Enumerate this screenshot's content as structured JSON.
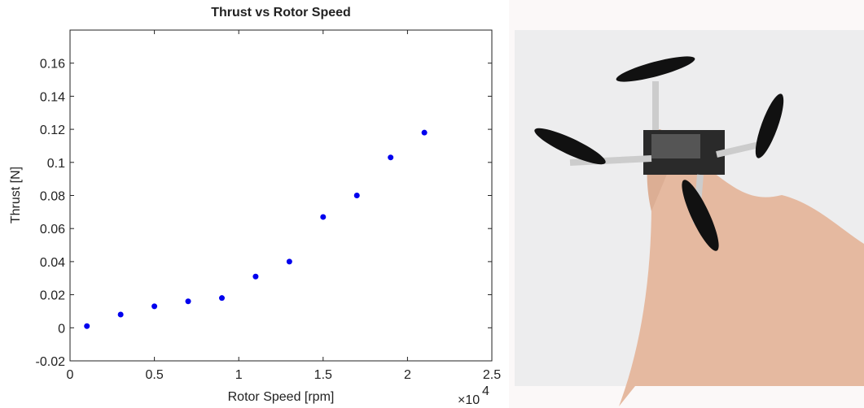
{
  "chart_data": {
    "type": "scatter",
    "title": "Thrust vs Rotor Speed",
    "x_label": "Rotor Speed [rpm]",
    "y_label": "Thrust [N]",
    "x_multiplier": "×10",
    "x_multiplier_exponent": "4",
    "x": [
      0.1,
      0.3,
      0.5,
      0.7,
      0.9,
      1.1,
      1.3,
      1.5,
      1.7,
      1.9,
      2.1
    ],
    "values": [
      0.001,
      0.008,
      0.013,
      0.016,
      0.018,
      0.031,
      0.04,
      0.067,
      0.08,
      0.103,
      0.118
    ],
    "color": "#0000ee",
    "xlim": [
      0,
      2.5
    ],
    "xticks": [
      0,
      0.5,
      1,
      1.5,
      2,
      2.5
    ],
    "ylim": [
      -0.02,
      0.18
    ],
    "yticks": [
      -0.02,
      0,
      0.02,
      0.04,
      0.06,
      0.08,
      0.1,
      0.12,
      0.14,
      0.16
    ],
    "grid": false
  }
}
